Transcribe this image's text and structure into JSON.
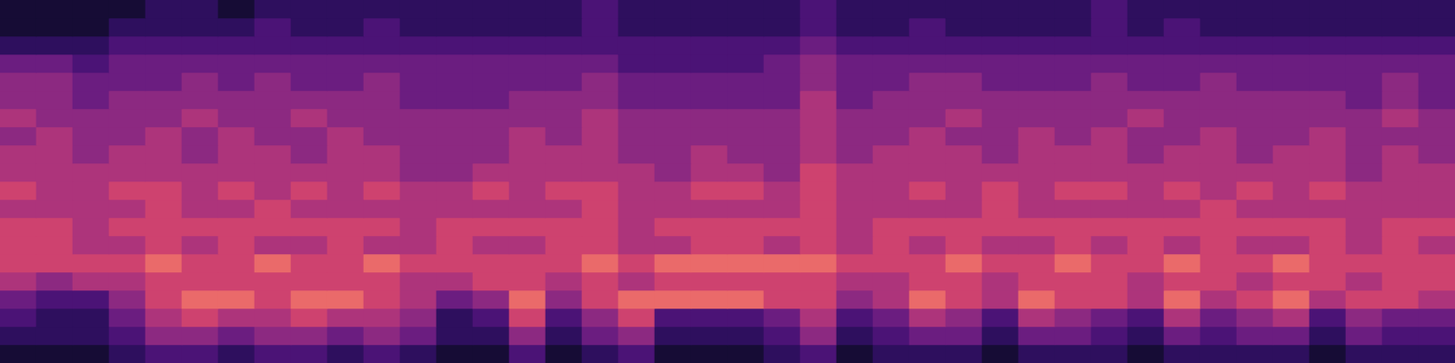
{
  "chart_data": {
    "type": "heatmap",
    "tick_labels": false,
    "grid": false,
    "zlim": [
      0,
      10
    ],
    "cells": [
      [
        1,
        1,
        1,
        1,
        2,
        2,
        1,
        2,
        2,
        2,
        2,
        2,
        2,
        2,
        2,
        2,
        3,
        2,
        2,
        2,
        2,
        2,
        3,
        2,
        2,
        2,
        2,
        2,
        2,
        2,
        3,
        2,
        2,
        2,
        2,
        2,
        2,
        2,
        2,
        2
      ],
      [
        1,
        1,
        1,
        2,
        2,
        2,
        2,
        3,
        2,
        2,
        3,
        2,
        2,
        2,
        2,
        2,
        3,
        2,
        2,
        2,
        2,
        2,
        3,
        2,
        2,
        3,
        2,
        2,
        2,
        2,
        3,
        2,
        3,
        2,
        2,
        2,
        2,
        2,
        2,
        2
      ],
      [
        2,
        2,
        2,
        3,
        3,
        3,
        3,
        3,
        3,
        3,
        3,
        3,
        3,
        3,
        3,
        3,
        3,
        3,
        3,
        3,
        3,
        3,
        4,
        3,
        3,
        3,
        3,
        3,
        3,
        3,
        3,
        3,
        3,
        3,
        3,
        3,
        3,
        3,
        3,
        3
      ],
      [
        4,
        4,
        3,
        4,
        4,
        4,
        4,
        4,
        4,
        4,
        4,
        4,
        4,
        4,
        4,
        4,
        4,
        3,
        3,
        3,
        3,
        4,
        5,
        4,
        4,
        4,
        4,
        4,
        4,
        4,
        4,
        4,
        4,
        4,
        4,
        4,
        4,
        4,
        4,
        4
      ],
      [
        5,
        5,
        4,
        4,
        4,
        5,
        4,
        5,
        4,
        4,
        5,
        4,
        4,
        4,
        4,
        4,
        5,
        4,
        4,
        4,
        4,
        4,
        5,
        4,
        4,
        5,
        5,
        4,
        4,
        4,
        5,
        4,
        4,
        5,
        4,
        4,
        4,
        4,
        5,
        4
      ],
      [
        5,
        5,
        4,
        5,
        5,
        5,
        5,
        5,
        5,
        5,
        5,
        4,
        4,
        4,
        5,
        5,
        5,
        4,
        4,
        4,
        4,
        4,
        6,
        4,
        5,
        5,
        5,
        5,
        5,
        5,
        5,
        5,
        5,
        5,
        5,
        5,
        5,
        4,
        5,
        4
      ],
      [
        6,
        5,
        5,
        5,
        5,
        6,
        5,
        5,
        6,
        5,
        5,
        5,
        5,
        5,
        5,
        5,
        6,
        5,
        5,
        5,
        5,
        5,
        6,
        5,
        5,
        5,
        6,
        5,
        5,
        5,
        5,
        6,
        5,
        5,
        5,
        5,
        5,
        5,
        6,
        5
      ],
      [
        5,
        6,
        5,
        5,
        6,
        5,
        6,
        5,
        5,
        6,
        5,
        5,
        5,
        5,
        6,
        5,
        6,
        5,
        5,
        5,
        5,
        5,
        6,
        5,
        5,
        6,
        5,
        5,
        6,
        5,
        6,
        5,
        5,
        6,
        5,
        5,
        6,
        5,
        5,
        5
      ],
      [
        6,
        6,
        5,
        6,
        6,
        5,
        6,
        6,
        5,
        6,
        6,
        5,
        5,
        5,
        6,
        6,
        6,
        5,
        5,
        6,
        5,
        5,
        6,
        5,
        6,
        6,
        6,
        5,
        6,
        6,
        6,
        5,
        6,
        6,
        5,
        6,
        6,
        5,
        6,
        5
      ],
      [
        6,
        6,
        6,
        6,
        6,
        6,
        6,
        6,
        6,
        6,
        6,
        5,
        5,
        6,
        6,
        6,
        6,
        6,
        5,
        6,
        6,
        5,
        7,
        6,
        6,
        6,
        6,
        6,
        6,
        6,
        6,
        6,
        6,
        6,
        6,
        6,
        6,
        5,
        6,
        6
      ],
      [
        7,
        6,
        6,
        7,
        7,
        6,
        7,
        6,
        7,
        6,
        7,
        6,
        6,
        7,
        6,
        7,
        7,
        6,
        6,
        7,
        7,
        6,
        7,
        6,
        6,
        7,
        6,
        7,
        6,
        7,
        7,
        6,
        7,
        6,
        7,
        6,
        7,
        6,
        6,
        6
      ],
      [
        6,
        6,
        6,
        6,
        7,
        6,
        6,
        7,
        6,
        6,
        6,
        6,
        6,
        6,
        6,
        6,
        7,
        6,
        6,
        6,
        6,
        6,
        7,
        6,
        6,
        6,
        6,
        7,
        6,
        6,
        6,
        6,
        6,
        7,
        6,
        6,
        6,
        6,
        6,
        6
      ],
      [
        7,
        7,
        6,
        7,
        7,
        7,
        7,
        7,
        7,
        7,
        7,
        6,
        7,
        7,
        7,
        7,
        7,
        6,
        7,
        7,
        7,
        7,
        7,
        6,
        7,
        7,
        7,
        7,
        7,
        7,
        7,
        7,
        7,
        7,
        7,
        7,
        7,
        6,
        7,
        7
      ],
      [
        7,
        7,
        6,
        6,
        7,
        6,
        7,
        6,
        6,
        7,
        6,
        6,
        7,
        6,
        6,
        7,
        7,
        6,
        6,
        7,
        7,
        6,
        7,
        6,
        7,
        6,
        7,
        6,
        6,
        7,
        6,
        7,
        6,
        7,
        6,
        6,
        7,
        6,
        7,
        6
      ],
      [
        7,
        7,
        7,
        7,
        8,
        7,
        7,
        8,
        7,
        7,
        8,
        7,
        7,
        7,
        7,
        7,
        8,
        7,
        8,
        8,
        8,
        8,
        8,
        7,
        7,
        7,
        8,
        7,
        7,
        8,
        7,
        7,
        8,
        7,
        7,
        8,
        7,
        7,
        7,
        7
      ],
      [
        6,
        5,
        6,
        6,
        7,
        7,
        7,
        7,
        7,
        7,
        7,
        6,
        6,
        7,
        7,
        6,
        7,
        6,
        7,
        7,
        7,
        7,
        7,
        6,
        6,
        7,
        7,
        6,
        7,
        7,
        7,
        6,
        7,
        7,
        6,
        7,
        7,
        6,
        7,
        7
      ],
      [
        4,
        3,
        3,
        5,
        7,
        8,
        8,
        7,
        8,
        8,
        7,
        6,
        4,
        5,
        8,
        5,
        7,
        8,
        8,
        8,
        8,
        7,
        7,
        5,
        6,
        8,
        7,
        6,
        8,
        7,
        7,
        6,
        8,
        6,
        7,
        8,
        6,
        7,
        7,
        6
      ],
      [
        3,
        2,
        2,
        4,
        6,
        7,
        6,
        6,
        7,
        6,
        6,
        5,
        2,
        3,
        7,
        3,
        5,
        7,
        3,
        3,
        3,
        4,
        6,
        3,
        4,
        6,
        5,
        3,
        6,
        5,
        4,
        3,
        6,
        4,
        5,
        6,
        3,
        5,
        4,
        4
      ],
      [
        2,
        2,
        2,
        3,
        5,
        5,
        4,
        5,
        5,
        4,
        5,
        4,
        2,
        2,
        5,
        2,
        4,
        5,
        2,
        2,
        2,
        3,
        5,
        2,
        3,
        4,
        4,
        2,
        4,
        4,
        3,
        2,
        4,
        3,
        4,
        4,
        2,
        4,
        3,
        3
      ],
      [
        1,
        1,
        1,
        2,
        3,
        3,
        2,
        3,
        3,
        2,
        3,
        2,
        1,
        1,
        3,
        1,
        2,
        3,
        1,
        1,
        1,
        2,
        3,
        1,
        2,
        2,
        2,
        1,
        2,
        2,
        2,
        1,
        2,
        2,
        2,
        2,
        1,
        2,
        2,
        2
      ]
    ]
  }
}
